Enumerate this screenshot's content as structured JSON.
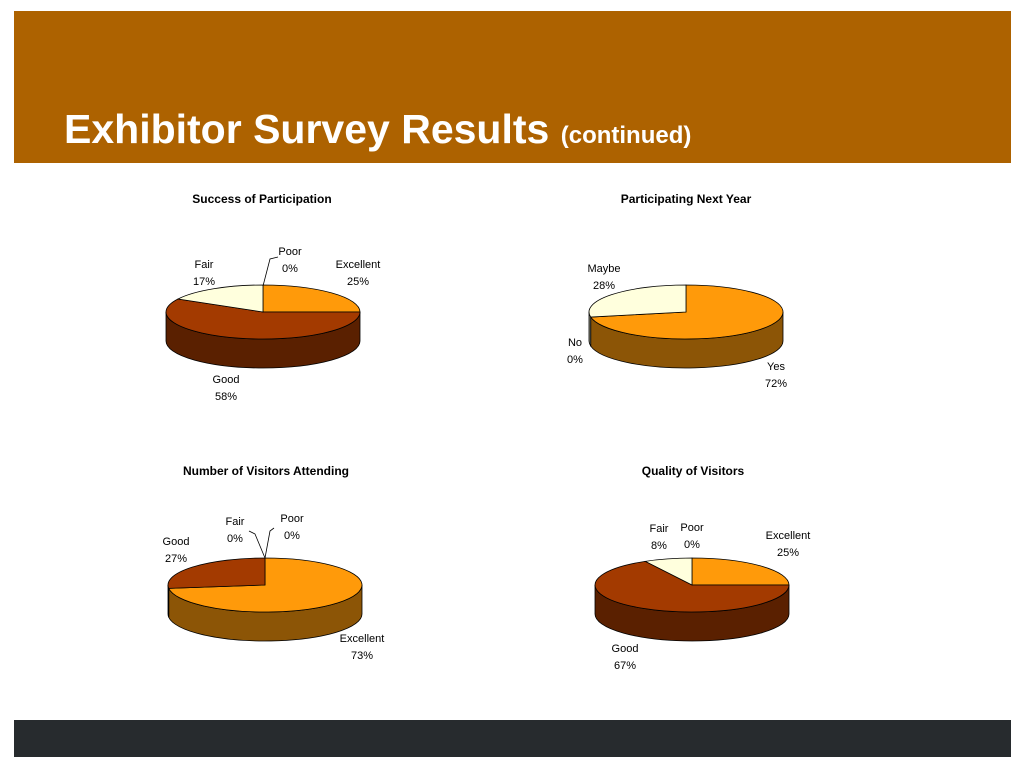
{
  "slide": {
    "title": "Exhibitor Survey Results",
    "subtitle": "(continued)"
  },
  "colors": {
    "title_band": "#ad6200",
    "footer_band": "#272b2e"
  },
  "chart_data": [
    {
      "type": "pie",
      "title": "Success of Participation",
      "slices": [
        {
          "label": "Excellent",
          "value": 25,
          "value_label": "25%",
          "color": "#ff9a0a"
        },
        {
          "label": "Good",
          "value": 58,
          "value_label": "58%",
          "color": "#a33a00"
        },
        {
          "label": "Fair",
          "value": 17,
          "value_label": "17%",
          "color": "#ffffdd"
        },
        {
          "label": "Poor",
          "value": 0,
          "value_label": "0%",
          "color": "#ffffff"
        }
      ]
    },
    {
      "type": "pie",
      "title": "Participating Next Year",
      "slices": [
        {
          "label": "Yes",
          "value": 72,
          "value_label": "72%",
          "color": "#ff9a0a"
        },
        {
          "label": "No",
          "value": 0,
          "value_label": "0%",
          "color": "#a33a00"
        },
        {
          "label": "Maybe",
          "value": 28,
          "value_label": "28%",
          "color": "#ffffdd"
        }
      ]
    },
    {
      "type": "pie",
      "title": "Number of Visitors Attending",
      "slices": [
        {
          "label": "Excellent",
          "value": 73,
          "value_label": "73%",
          "color": "#ff9a0a"
        },
        {
          "label": "Good",
          "value": 27,
          "value_label": "27%",
          "color": "#a33a00"
        },
        {
          "label": "Fair",
          "value": 0,
          "value_label": "0%",
          "color": "#ffffdd"
        },
        {
          "label": "Poor",
          "value": 0,
          "value_label": "0%",
          "color": "#ffffff"
        }
      ]
    },
    {
      "type": "pie",
      "title": "Quality of Visitors",
      "slices": [
        {
          "label": "Excellent",
          "value": 25,
          "value_label": "25%",
          "color": "#ff9a0a"
        },
        {
          "label": "Good",
          "value": 67,
          "value_label": "67%",
          "color": "#a33a00"
        },
        {
          "label": "Fair",
          "value": 8,
          "value_label": "8%",
          "color": "#ffffdd"
        },
        {
          "label": "Poor",
          "value": 0,
          "value_label": "0%",
          "color": "#ffffff"
        }
      ]
    }
  ]
}
